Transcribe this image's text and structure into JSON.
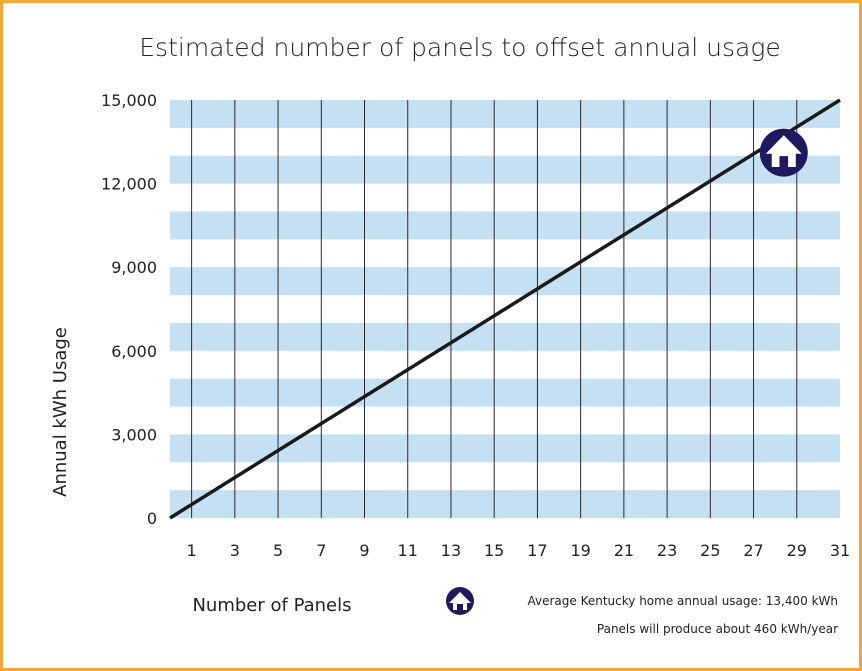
{
  "chart_data": {
    "type": "line",
    "title": "Estimated number of panels to offset annual usage",
    "xlabel": "Number of Panels",
    "ylabel": "Annual kWh Usage",
    "xlim": [
      0,
      31
    ],
    "ylim": [
      0,
      15000
    ],
    "x_ticks": [
      "1",
      "3",
      "5",
      "7",
      "9",
      "11",
      "13",
      "15",
      "17",
      "19",
      "21",
      "23",
      "25",
      "27",
      "29",
      "31"
    ],
    "y_ticks": [
      "0",
      "3,000",
      "6,000",
      "9,000",
      "12,000",
      "15,000"
    ],
    "series": [
      {
        "x": [
          0,
          31
        ],
        "values": [
          0,
          15000
        ],
        "color": "#1a1a1a"
      }
    ],
    "marker": {
      "icon": "house-icon",
      "x": 29,
      "y": 13400,
      "color": "#1f1a5e"
    },
    "grid": true,
    "band_color": "#c5dff3",
    "notes": [
      "Average Kentucky home annual usage: 13,400 kWh",
      "Panels will produce about 460 kWh/year"
    ]
  }
}
